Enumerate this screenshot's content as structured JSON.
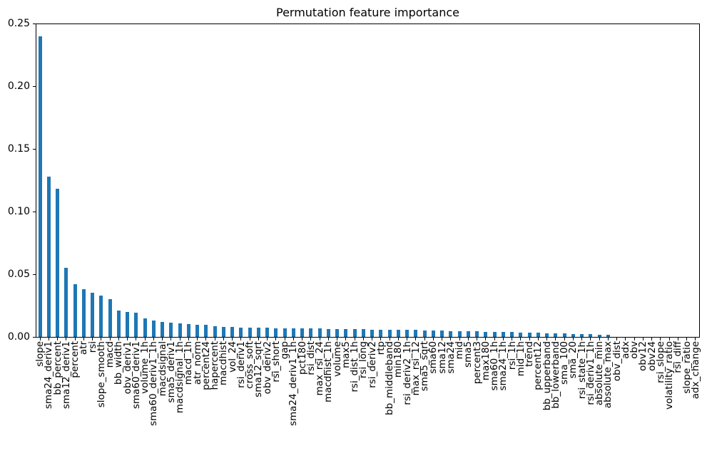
{
  "chart_data": {
    "type": "bar",
    "title": "Permutation feature importance",
    "xlabel": "",
    "ylabel": "",
    "ylim": [
      0,
      0.25
    ],
    "yticks": [
      0.0,
      0.05,
      0.1,
      0.15,
      0.2,
      0.25
    ],
    "ytick_labels": [
      "0.00",
      "0.05",
      "0.10",
      "0.15",
      "0.20",
      "0.25"
    ],
    "grid": false,
    "legend": "none",
    "bar_color": "#1f77b4",
    "categories": [
      "slope",
      "sma24_deriv1",
      "bb_percent",
      "sma12_deriv1",
      "percent",
      "atr",
      "rsi",
      "slope_smooth",
      "macd",
      "bb_width",
      "obv_deriv1",
      "sma60_deriv1",
      "volume_1h",
      "sma60_deriv1_1h",
      "macdsignal",
      "sma5_deriv1",
      "macdsignal_1h",
      "macd_1h",
      "atr_norm",
      "percent24",
      "hapercent",
      "macdhist",
      "vol_24",
      "rsi_deriv1",
      "cross_soft",
      "sma12_sqrt",
      "obv_deriv2",
      "rsi_short",
      "gap",
      "sma24_deriv1_1h",
      "pct180",
      "rsi_dist",
      "max_rsi_24",
      "macdhist_1h",
      "volume",
      "max5",
      "rsi_dist_1h",
      "rsi_long",
      "rsi_deriv2",
      "rtp",
      "bb_middleband",
      "min180",
      "rsi_deriv2_1h",
      "max_rsi_12",
      "sma5_sqrt",
      "sma60",
      "sma12",
      "sma24",
      "mid",
      "sma5",
      "percent3",
      "max180",
      "sma60_1h",
      "sma24_1h",
      "rsi_1h",
      "mid_1h",
      "trend",
      "percent12",
      "bb_upperband",
      "bb_lowerband",
      "sma_100",
      "sma_20",
      "rsi_state_1h",
      "rsi_deriv1_1h",
      "absolute_min",
      "absolute_max",
      "obv_dist",
      "adx",
      "obv",
      "obv12",
      "obv24",
      "rsi_slope",
      "volatility_ratio",
      "rsi_diff",
      "slope_ratio",
      "adx_change"
    ],
    "values": [
      0.24,
      0.128,
      0.118,
      0.055,
      0.042,
      0.038,
      0.035,
      0.033,
      0.03,
      0.021,
      0.02,
      0.0195,
      0.0148,
      0.0128,
      0.012,
      0.0112,
      0.0108,
      0.0101,
      0.0097,
      0.0094,
      0.0086,
      0.0081,
      0.0079,
      0.0076,
      0.0074,
      0.0073,
      0.0072,
      0.0071,
      0.007,
      0.0069,
      0.0068,
      0.0067,
      0.0066,
      0.0065,
      0.0064,
      0.0062,
      0.0061,
      0.006,
      0.0059,
      0.0058,
      0.0057,
      0.0056,
      0.0055,
      0.0054,
      0.0052,
      0.005,
      0.0049,
      0.0047,
      0.0046,
      0.0044,
      0.0043,
      0.004,
      0.0039,
      0.0038,
      0.0037,
      0.0036,
      0.0035,
      0.0033,
      0.0031,
      0.003,
      0.0028,
      0.0024,
      0.0021,
      0.002,
      0.0019,
      0.0016,
      0.0,
      0.0,
      0.0,
      0.0,
      0.0,
      0.0,
      0.0,
      0.0,
      0.0,
      0.0
    ]
  }
}
